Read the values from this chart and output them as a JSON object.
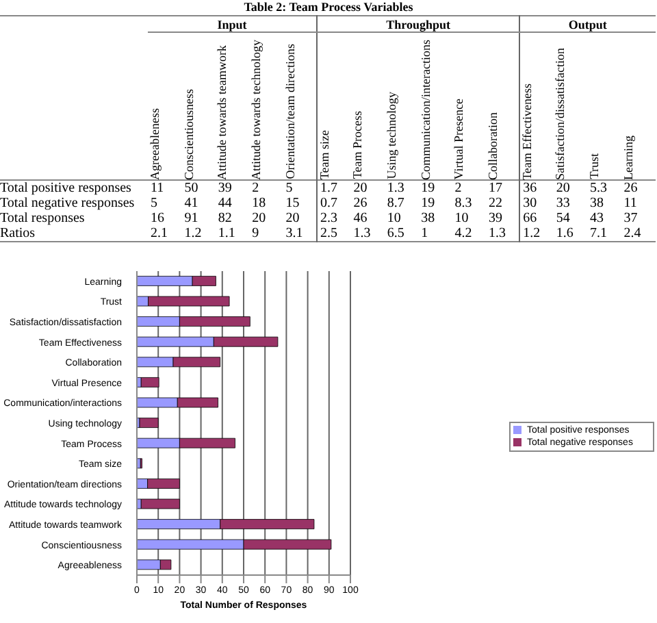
{
  "chart_data": [
    {
      "type": "heatmap",
      "title": "Table 2:  Team Process Variables",
      "categories": [
        "Agreeableness",
        "Conscientiousness",
        "Attitude towards teamwork",
        "Attitude towards technology",
        "Orientation/team directions",
        "Team size",
        "Team Process",
        "Using technology",
        "Communication/interactions",
        "Virtual Presence",
        "Collaboration",
        "Team Effectiveness",
        "Satisfaction/dissatisfaction",
        "Trust",
        "Learning"
      ],
      "y_categories": [
        "Total positive responses",
        "Total negative responses",
        "Total responses",
        "Ratios"
      ],
      "cells": [
        [
          11,
          50,
          39,
          2,
          5,
          1.7,
          20,
          1.3,
          19,
          2,
          17,
          36,
          20,
          5.3,
          26
        ],
        [
          5,
          41,
          44,
          18,
          15,
          0.7,
          26,
          8.7,
          19,
          8.3,
          22,
          30,
          33,
          38,
          11
        ],
        [
          16,
          91,
          82,
          20,
          20,
          2.3,
          46,
          10,
          38,
          10,
          39,
          66,
          54,
          43,
          37
        ],
        [
          2.1,
          1.2,
          1.1,
          9,
          3.1,
          2.5,
          1.3,
          6.5,
          1,
          4.2,
          1.3,
          1.2,
          1.6,
          7.1,
          2.4
        ]
      ],
      "annotations": [
        "Input",
        "Throughput",
        "Output"
      ],
      "data_labels": true
    },
    {
      "type": "bar",
      "orientation": "horizontal",
      "stacked": true,
      "categories": [
        "Learning",
        "Trust",
        "Satisfaction/dissatisfaction",
        "Team Effectiveness",
        "Collaboration",
        "Virtual Presence",
        "Communication/interactions",
        "Using technology",
        "Team Process",
        "Team size",
        "Orientation/team directions",
        "Attitude towards technology",
        "Attitude towards teamwork",
        "Conscientiousness",
        "Agreeableness"
      ],
      "series": [
        {
          "name": "Total positive responses",
          "color": "#9999ff",
          "values": [
            26,
            5.3,
            20,
            36,
            17,
            2,
            19,
            1.3,
            20,
            1.7,
            5,
            2,
            39,
            50,
            11
          ]
        },
        {
          "name": "Total negative responses",
          "color": "#993366",
          "values": [
            11,
            38,
            33,
            30,
            22,
            8.3,
            19,
            8.7,
            26,
            0.7,
            15,
            18,
            44,
            41,
            5
          ]
        }
      ],
      "xlabel": "Total Number of Responses",
      "xlim": [
        0,
        100
      ],
      "xticks": [
        0,
        10,
        20,
        30,
        40,
        50,
        60,
        70,
        80,
        90,
        100
      ],
      "grid": "x",
      "legend": "right"
    }
  ]
}
